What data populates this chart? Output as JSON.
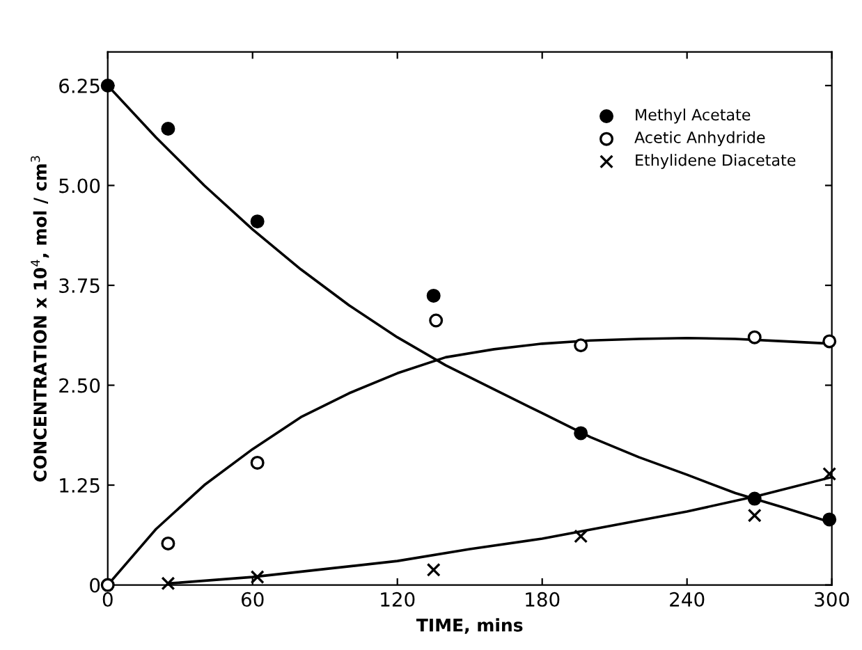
{
  "chart_data": {
    "type": "scatter",
    "xlabel": "TIME, mins",
    "ylabel": "CONCENTRATION x 10$^{4}$, mol / cm$^{3}$",
    "xlim": [
      0,
      300
    ],
    "ylim": [
      0,
      6.67
    ],
    "xticks": [
      0,
      60,
      120,
      180,
      240,
      300
    ],
    "yticks": [
      0,
      1.25,
      {
        "value": 2.5,
        "label": "2.50"
      },
      3.75,
      {
        "value": 5,
        "label": "5.00"
      },
      6.25
    ],
    "grid": false,
    "legend": "top right",
    "series": [
      {
        "name": "Methyl Acetate",
        "marker": "circle",
        "color": "#000000",
        "x": [
          0,
          25,
          62,
          135,
          196,
          268,
          299
        ],
        "values": [
          6.25,
          5.71,
          4.55,
          3.62,
          1.9,
          1.08,
          0.82
        ]
      },
      {
        "name": "Acetic Anhydride",
        "marker": "circle",
        "color": "#ffffff",
        "x": [
          0,
          25,
          62,
          136,
          196,
          268,
          299
        ],
        "values": [
          0,
          0.52,
          1.53,
          3.31,
          3.0,
          3.1,
          3.05
        ]
      },
      {
        "name": "Ethylidene Diacetate",
        "marker": "cross",
        "color": "#000000",
        "x": [
          25,
          62,
          135,
          196,
          268,
          299
        ],
        "values": [
          0.02,
          0.1,
          0.19,
          0.61,
          0.87,
          1.39
        ]
      },
      {
        "type": "line",
        "marker": "none",
        "color": "#000000",
        "x": [
          0,
          20,
          40,
          60,
          80,
          100,
          120,
          140,
          160,
          180,
          200,
          220,
          240,
          260,
          280,
          300
        ],
        "values": [
          6.25,
          5.6,
          5.0,
          4.45,
          3.95,
          3.5,
          3.1,
          2.75,
          2.45,
          2.15,
          1.85,
          1.6,
          1.38,
          1.15,
          0.97,
          0.78
        ]
      },
      {
        "type": "line",
        "marker": "none",
        "color": "#000000",
        "x": [
          0,
          20,
          40,
          60,
          80,
          100,
          120,
          140,
          160,
          180,
          200,
          220,
          240,
          260,
          280,
          300
        ],
        "values": [
          0,
          0.7,
          1.25,
          1.7,
          2.1,
          2.4,
          2.65,
          2.85,
          2.95,
          3.02,
          3.06,
          3.08,
          3.09,
          3.08,
          3.05,
          3.02
        ]
      },
      {
        "type": "line",
        "marker": "none",
        "color": "#000000",
        "x": [
          25,
          30,
          60,
          90,
          120,
          150,
          180,
          210,
          240,
          270,
          300
        ],
        "values": [
          0.02,
          0.03,
          0.1,
          0.2,
          0.3,
          0.45,
          0.58,
          0.75,
          0.92,
          1.12,
          1.35
        ]
      }
    ]
  }
}
